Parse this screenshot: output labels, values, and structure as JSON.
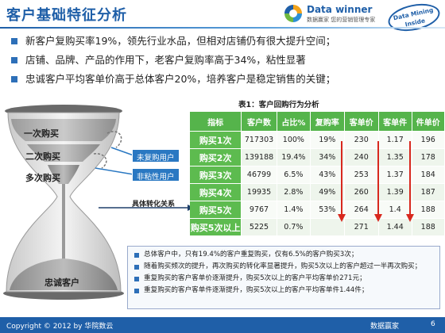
{
  "header": {
    "title": "客户基础特征分析",
    "logo_name": "Data winner",
    "logo_sub": "数据赢家 您的营销管理专家",
    "badge_line1": "Data Mining",
    "badge_line2": "Inside"
  },
  "bullets": [
    "新客户复购买率19%，领先行业水品，但相对店铺仍有很大提升空间；",
    "店铺、品牌、产品的作用下，老客户复购率高于34%，粘性显著",
    "忠诚客户平均客单价高于总体客户20%，培养客户是稳定销售的关键；"
  ],
  "funnel": {
    "stages": [
      "一次购买",
      "二次购买",
      "多次购买",
      "忠诚客户"
    ],
    "tags": [
      "未复购用户",
      "非粘性用户"
    ],
    "convert_label": "具体转化关系"
  },
  "table": {
    "caption": "表1：客户回购行为分析",
    "headers": [
      "指标",
      "客户数",
      "占比%",
      "复购率",
      "客单价",
      "客单件",
      "件单价"
    ],
    "rows": [
      [
        "购买1次",
        "717303",
        "100%",
        "19%",
        "230",
        "1.17",
        "196"
      ],
      [
        "购买2次",
        "139188",
        "19.4%",
        "34%",
        "240",
        "1.35",
        "178"
      ],
      [
        "购买3次",
        "46799",
        "6.5%",
        "43%",
        "253",
        "1.37",
        "184"
      ],
      [
        "购买4次",
        "19935",
        "2.8%",
        "49%",
        "260",
        "1.39",
        "187"
      ],
      [
        "购买5次",
        "9767",
        "1.4%",
        "53%",
        "264",
        "1.4",
        "188"
      ],
      [
        "购买5次以上",
        "5225",
        "0.7%",
        "",
        "271",
        "1.44",
        "188"
      ]
    ]
  },
  "findings": [
    "总体客户中，只有19.4%的客户重复购买，仅有6.5%的客户购买3次；",
    "随着购买频次的提升，再次购买的转化率显著提升，购买5次以上的客户超过一半再次购买；",
    "重复购买的客户客单价逐渐提升，购买5次以上的客户平均客单价271元；",
    "重复购买的客户客单件逐渐提升，购买5次以上的客户平均客单件1.44件；"
  ],
  "footer": {
    "copyright": "Copyright © 2012 by 华院数云",
    "brand": "数据赢家",
    "page": "6"
  },
  "colors": {
    "accent_blue": "#1f5fa8",
    "table_green": "#55b44b",
    "arrow_red": "#d8281e"
  }
}
